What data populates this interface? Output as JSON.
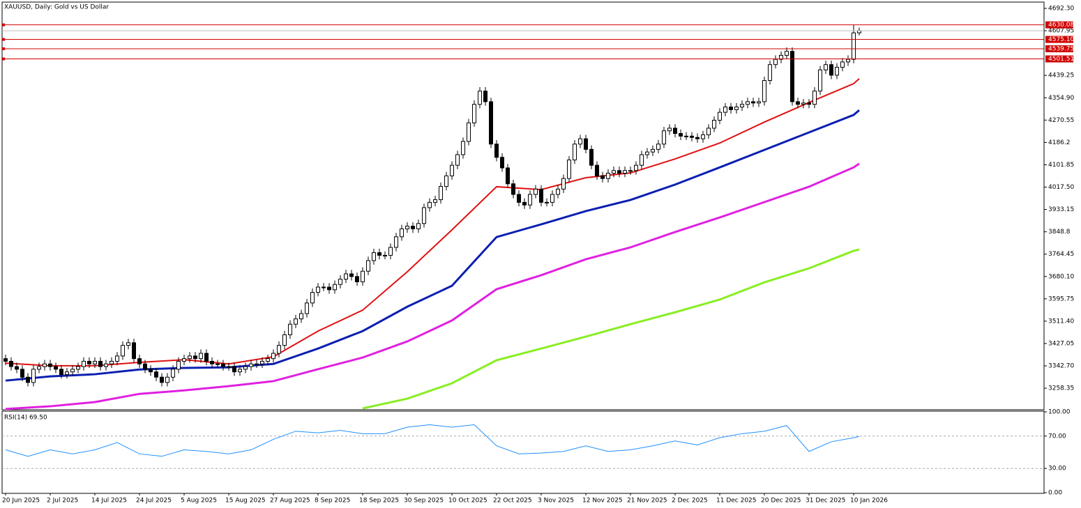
{
  "chart_data": {
    "type": "candlestick",
    "title": "XAUUSD, Daily:  Gold vs US Dollar",
    "categories": [
      "20 Jun 2025",
      null,
      null,
      null,
      null,
      null,
      null,
      null,
      "2 Jul 2025",
      null,
      null,
      null,
      null,
      null,
      null,
      null,
      "14 Jul 2025",
      null,
      null,
      null,
      null,
      null,
      null,
      null,
      "24 Jul 2025",
      null,
      null,
      null,
      null,
      null,
      null,
      null,
      "5 Aug 2025",
      null,
      null,
      null,
      null,
      null,
      null,
      null,
      "15 Aug 2025",
      null,
      null,
      null,
      null,
      null,
      null,
      null,
      "27 Aug 2025",
      null,
      null,
      null,
      null,
      null,
      null,
      null,
      "8 Sep 2025",
      null,
      null,
      null,
      null,
      null,
      null,
      null,
      "18 Sep 2025",
      null,
      null,
      null,
      null,
      null,
      null,
      null,
      "30 Sep 2025",
      null,
      null,
      null,
      null,
      null,
      null,
      null,
      "10 Oct 2025",
      null,
      null,
      null,
      null,
      null,
      null,
      null,
      "22 Oct 2025",
      null,
      null,
      null,
      null,
      null,
      null,
      null,
      "3 Nov 2025",
      null,
      null,
      null,
      null,
      null,
      null,
      null,
      "12 Nov 2025",
      null,
      null,
      null,
      null,
      null,
      null,
      null,
      "21 Nov 2025",
      null,
      null,
      null,
      null,
      null,
      null,
      null,
      "2 Dec 2025",
      null,
      null,
      null,
      null,
      null,
      null,
      null,
      "11 Dec 2025",
      null,
      null,
      null,
      null,
      null,
      null,
      null,
      "20 Dec 2025",
      null,
      null,
      null,
      null,
      null,
      null,
      null,
      "31 Dec 2025",
      null,
      null,
      null,
      null,
      null,
      null,
      null,
      "10 Jan 2026",
      null
    ],
    "open": [
      3370,
      3360,
      3340,
      3330,
      3300,
      3280,
      3330,
      3340,
      3350,
      3340,
      3330,
      3310,
      3320,
      3330,
      3340,
      3360,
      3350,
      3360,
      3340,
      3350,
      3360,
      3380,
      3420,
      3430,
      3370,
      3350,
      3330,
      3320,
      3300,
      3280,
      3300,
      3330,
      3360,
      3370,
      3380,
      3370,
      3390,
      3360,
      3350,
      3350,
      3340,
      3340,
      3320,
      3330,
      3340,
      3350,
      3350,
      3360,
      3370,
      3390,
      3420,
      3460,
      3500,
      3520,
      3540,
      3580,
      3620,
      3640,
      3640,
      3630,
      3650,
      3670,
      3690,
      3680,
      3660,
      3700,
      3740,
      3770,
      3760,
      3760,
      3790,
      3830,
      3860,
      3870,
      3860,
      3880,
      3940,
      3960,
      3970,
      4020,
      4060,
      4100,
      4140,
      4190,
      4260,
      4330,
      4380,
      4340,
      4180,
      4130,
      4090,
      4030,
      3990,
      3960,
      3950,
      3990,
      4010,
      3960,
      3960,
      3990,
      4010,
      4050,
      4120,
      4180,
      4200,
      4160,
      4100,
      4060,
      4050,
      4070,
      4080,
      4070,
      4080,
      4080,
      4100,
      4140,
      4150,
      4160,
      4180,
      4230,
      4240,
      4220,
      4210,
      4210,
      4205,
      4200,
      4215,
      4240,
      4270,
      4300,
      4320,
      4310,
      4320,
      4330,
      4340,
      4335,
      4340,
      4420,
      4480,
      4500,
      4515,
      4530,
      4340,
      4330,
      4335,
      4330,
      4380,
      4460,
      4480,
      4440,
      4470,
      4490,
      4500,
      4600
    ],
    "high": [
      3385,
      3375,
      3355,
      3345,
      3315,
      3345,
      3355,
      3365,
      3365,
      3355,
      3345,
      3335,
      3345,
      3355,
      3375,
      3375,
      3375,
      3375,
      3365,
      3375,
      3395,
      3435,
      3445,
      3445,
      3385,
      3365,
      3345,
      3335,
      3315,
      3315,
      3345,
      3375,
      3385,
      3395,
      3395,
      3405,
      3405,
      3375,
      3365,
      3365,
      3355,
      3355,
      3345,
      3355,
      3365,
      3365,
      3375,
      3385,
      3405,
      3435,
      3475,
      3515,
      3535,
      3555,
      3595,
      3635,
      3655,
      3655,
      3655,
      3665,
      3685,
      3705,
      3705,
      3695,
      3715,
      3755,
      3785,
      3785,
      3775,
      3805,
      3845,
      3875,
      3885,
      3885,
      3895,
      3955,
      3975,
      3985,
      4035,
      4075,
      4115,
      4155,
      4205,
      4275,
      4345,
      4395,
      4395,
      4355,
      4195,
      4145,
      4105,
      4045,
      4005,
      3975,
      4005,
      4025,
      4025,
      3975,
      4005,
      4025,
      4065,
      4135,
      4195,
      4215,
      4215,
      4175,
      4115,
      4075,
      4085,
      4095,
      4095,
      4095,
      4095,
      4115,
      4155,
      4165,
      4175,
      4195,
      4245,
      4255,
      4255,
      4235,
      4225,
      4225,
      4220,
      4230,
      4255,
      4285,
      4315,
      4335,
      4335,
      4335,
      4345,
      4355,
      4355,
      4355,
      4435,
      4495,
      4515,
      4530,
      4545,
      4545,
      4355,
      4350,
      4350,
      4395,
      4475,
      4495,
      4495,
      4485,
      4505,
      4515,
      4630,
      4620
    ],
    "low": [
      3345,
      3325,
      3315,
      3285,
      3265,
      3265,
      3315,
      3325,
      3325,
      3315,
      3295,
      3295,
      3305,
      3315,
      3325,
      3335,
      3335,
      3325,
      3325,
      3335,
      3345,
      3365,
      3405,
      3355,
      3335,
      3315,
      3305,
      3285,
      3265,
      3265,
      3285,
      3315,
      3345,
      3355,
      3355,
      3355,
      3345,
      3335,
      3335,
      3325,
      3325,
      3305,
      3305,
      3315,
      3325,
      3335,
      3335,
      3345,
      3355,
      3375,
      3405,
      3445,
      3485,
      3505,
      3525,
      3565,
      3605,
      3625,
      3615,
      3615,
      3635,
      3655,
      3665,
      3645,
      3645,
      3685,
      3725,
      3745,
      3745,
      3745,
      3775,
      3815,
      3845,
      3845,
      3845,
      3865,
      3925,
      3945,
      3955,
      4005,
      4045,
      4085,
      4125,
      4175,
      4245,
      4315,
      4325,
      4165,
      4115,
      4075,
      4015,
      3975,
      3945,
      3935,
      3935,
      3975,
      3945,
      3945,
      3945,
      3975,
      3995,
      4035,
      4105,
      4165,
      4145,
      4085,
      4045,
      4035,
      4035,
      4055,
      4055,
      4055,
      4065,
      4065,
      4085,
      4125,
      4135,
      4145,
      4165,
      4215,
      4205,
      4195,
      4195,
      4190,
      4185,
      4185,
      4200,
      4225,
      4255,
      4285,
      4295,
      4295,
      4305,
      4315,
      4320,
      4320,
      4325,
      4405,
      4465,
      4485,
      4500,
      4325,
      4315,
      4315,
      4315,
      4315,
      4365,
      4445,
      4425,
      4425,
      4455,
      4475,
      4485,
      4590
    ],
    "close": [
      3360,
      3340,
      3330,
      3300,
      3280,
      3330,
      3340,
      3350,
      3340,
      3330,
      3310,
      3320,
      3330,
      3340,
      3360,
      3350,
      3360,
      3340,
      3350,
      3360,
      3380,
      3420,
      3430,
      3370,
      3350,
      3330,
      3320,
      3300,
      3280,
      3300,
      3330,
      3360,
      3370,
      3380,
      3370,
      3390,
      3360,
      3350,
      3350,
      3340,
      3340,
      3320,
      3330,
      3340,
      3350,
      3350,
      3360,
      3370,
      3390,
      3420,
      3460,
      3500,
      3520,
      3540,
      3580,
      3620,
      3640,
      3640,
      3630,
      3650,
      3670,
      3690,
      3680,
      3660,
      3700,
      3740,
      3770,
      3760,
      3760,
      3790,
      3830,
      3860,
      3870,
      3860,
      3880,
      3940,
      3960,
      3970,
      4020,
      4060,
      4100,
      4140,
      4190,
      4260,
      4330,
      4380,
      4340,
      4180,
      4130,
      4090,
      4030,
      3990,
      3960,
      3950,
      3990,
      4010,
      3960,
      3960,
      3990,
      4010,
      4050,
      4120,
      4180,
      4200,
      4160,
      4100,
      4060,
      4050,
      4070,
      4080,
      4070,
      4080,
      4080,
      4100,
      4140,
      4150,
      4160,
      4180,
      4230,
      4240,
      4220,
      4210,
      4210,
      4205,
      4200,
      4215,
      4240,
      4270,
      4300,
      4320,
      4310,
      4320,
      4330,
      4340,
      4335,
      4340,
      4420,
      4480,
      4500,
      4515,
      4530,
      4340,
      4330,
      4335,
      4330,
      4380,
      4460,
      4480,
      4440,
      4470,
      4490,
      4500,
      4600,
      4607.95
    ],
    "up_color": "#ffffff",
    "down_color": "#000000",
    "ylim": [
      3177,
      4716
    ],
    "yticks": [
      {
        "value": 4692.3,
        "label": "4692.30"
      },
      4607.95,
      4439.25,
      {
        "value": 4354.9,
        "label": "4354.90"
      },
      4270.55,
      4186.2,
      4101.85,
      {
        "value": 4017.5,
        "label": "4017.50"
      },
      3933.15,
      3848.8,
      3764.45,
      {
        "value": 3680.1,
        "label": "3680.10"
      },
      3595.75,
      {
        "value": 3511.4,
        "label": "3511.40"
      },
      3427.05,
      {
        "value": 3342.7,
        "label": "3342.70"
      },
      3258.35
    ],
    "levels": [
      4630.08,
      4575.1,
      4539.75,
      4501.51
    ],
    "level_labels": [
      "4630.08",
      "4575.10",
      "4539.75",
      "4501.51"
    ],
    "level_color": "#d00000",
    "lines": [
      {
        "color": "#e01010",
        "x": [
          0,
          8,
          16,
          24,
          32,
          40,
          48,
          56,
          64,
          72,
          80,
          88,
          96,
          104,
          112,
          120,
          128,
          136,
          144,
          152,
          153
        ],
        "values": [
          3353,
          3343,
          3343,
          3356,
          3366,
          3350,
          3377,
          3474,
          3553,
          3698,
          3856,
          4019,
          4008,
          4053,
          4071,
          4124,
          4184,
          4263,
          4337,
          4408,
          4427
        ]
      },
      {
        "color": "#0a1fb0",
        "x": [
          0,
          8,
          16,
          24,
          32,
          40,
          48,
          56,
          64,
          72,
          80,
          88,
          96,
          104,
          112,
          120,
          128,
          136,
          144,
          152,
          153
        ],
        "values": [
          3287,
          3303,
          3311,
          3329,
          3335,
          3337,
          3350,
          3408,
          3474,
          3566,
          3645,
          3829,
          3877,
          3927,
          3969,
          4027,
          4092,
          4158,
          4224,
          4290,
          4308
        ]
      },
      {
        "color": "#e020e0",
        "x": [
          0,
          8,
          16,
          24,
          32,
          40,
          48,
          56,
          64,
          72,
          80,
          88,
          96,
          104,
          112,
          120,
          128,
          136,
          144,
          152,
          153
        ],
        "values": [
          3180,
          3190,
          3206,
          3237,
          3250,
          3266,
          3285,
          3330,
          3374,
          3435,
          3514,
          3632,
          3685,
          3745,
          3790,
          3848,
          3903,
          3961,
          4019,
          4092,
          4106
        ]
      },
      {
        "color": "#88ee22",
        "x": [
          0,
          8,
          16,
          24,
          32,
          40,
          48,
          56,
          64,
          72,
          80,
          88,
          96,
          104,
          112,
          120,
          128,
          136,
          144,
          152,
          153
        ],
        "values": [
          null,
          null,
          null,
          null,
          null,
          null,
          null,
          null,
          3182,
          3219,
          3277,
          3364,
          3408,
          3453,
          3500,
          3545,
          3593,
          3658,
          3711,
          3777,
          3782
        ]
      }
    ],
    "rsi": {
      "label": "RSI(14) 69.50",
      "color": "#1e8fff",
      "x": [
        0,
        4,
        8,
        12,
        16,
        20,
        24,
        28,
        32,
        36,
        40,
        44,
        48,
        52,
        56,
        60,
        64,
        68,
        72,
        76,
        80,
        84,
        88,
        92,
        96,
        100,
        104,
        108,
        112,
        116,
        120,
        124,
        128,
        132,
        136,
        140,
        144,
        148,
        152,
        153
      ],
      "values": [
        53,
        45,
        53,
        48,
        53,
        62,
        48,
        45,
        53,
        51,
        48,
        53,
        66,
        76,
        74,
        77,
        73,
        73,
        81,
        84,
        81,
        84,
        58,
        48,
        49,
        51,
        58,
        51,
        53,
        58,
        64,
        59,
        68,
        73,
        76,
        83,
        51,
        63,
        68,
        69.5
      ],
      "ylim": [
        0,
        100
      ],
      "yticks": [
        {
          "value": 100,
          "label": "100.00"
        },
        {
          "value": 70,
          "label": "70.00"
        },
        {
          "value": 30,
          "label": "30.00"
        },
        {
          "value": 0,
          "label": "0.00"
        }
      ],
      "levels": [
        70,
        30
      ]
    }
  }
}
